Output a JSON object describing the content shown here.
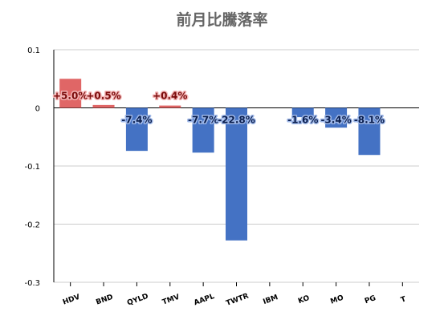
{
  "chart_data": {
    "type": "bar",
    "title": "前月比騰落率",
    "xlabel": "",
    "ylabel": "",
    "ylim": [
      -0.3,
      0.1
    ],
    "yticks": [
      0.1,
      0,
      -0.1,
      -0.2,
      -0.3
    ],
    "ytick_labels": [
      "0.1",
      "0",
      "-0.1",
      "-0.2",
      "-0.3"
    ],
    "grid": true,
    "legend": "none",
    "categories": [
      "HDV",
      "BND",
      "QYLD",
      "TMV",
      "AAPL",
      "TWTR",
      "IBM",
      "KO",
      "MO",
      "PG",
      "T"
    ],
    "values": [
      0.05,
      0.005,
      -0.074,
      0.004,
      -0.077,
      -0.228,
      null,
      -0.016,
      -0.034,
      -0.081,
      null
    ],
    "data_labels": [
      "+5.0%",
      "+0.5%",
      "-7.4%",
      "+0.4%",
      "-7.7%",
      "-22.8%",
      "",
      "-1.6%",
      "-3.4%",
      "-8.1%",
      ""
    ],
    "colors": {
      "positive": "#e06666",
      "negative": "#4472c4",
      "positive_label_outline": "#f4b6b6",
      "negative_label_outline": "#9fb8e8",
      "title": "#666666",
      "grid": "#cccccc",
      "axis": "#000000"
    }
  }
}
